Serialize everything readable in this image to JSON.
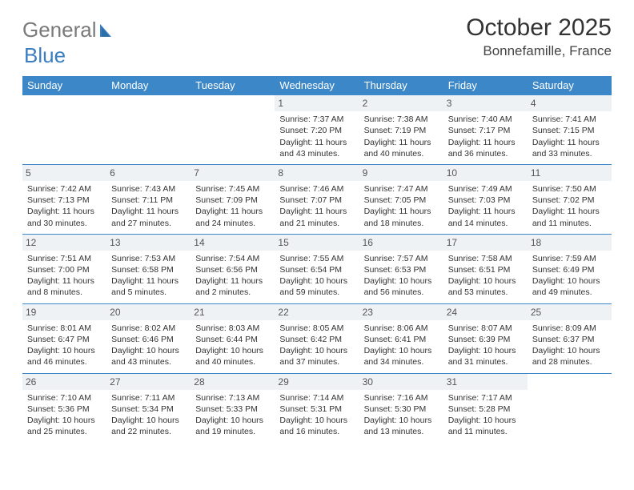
{
  "logo": {
    "text_gray": "General",
    "text_blue": "Blue"
  },
  "title": "October 2025",
  "location": "Bonnefamille, France",
  "colors": {
    "header_bg": "#3c87c7",
    "header_fg": "#ffffff",
    "daynum_bg": "#eef2f5",
    "border": "#3c87c7",
    "logo_gray": "#7a7a7a",
    "logo_blue": "#3a7ec1",
    "page_bg": "#ffffff"
  },
  "day_headers": [
    "Sunday",
    "Monday",
    "Tuesday",
    "Wednesday",
    "Thursday",
    "Friday",
    "Saturday"
  ],
  "weeks": [
    [
      null,
      null,
      null,
      {
        "n": "1",
        "sunrise": "Sunrise: 7:37 AM",
        "sunset": "Sunset: 7:20 PM",
        "d1": "Daylight: 11 hours",
        "d2": "and 43 minutes."
      },
      {
        "n": "2",
        "sunrise": "Sunrise: 7:38 AM",
        "sunset": "Sunset: 7:19 PM",
        "d1": "Daylight: 11 hours",
        "d2": "and 40 minutes."
      },
      {
        "n": "3",
        "sunrise": "Sunrise: 7:40 AM",
        "sunset": "Sunset: 7:17 PM",
        "d1": "Daylight: 11 hours",
        "d2": "and 36 minutes."
      },
      {
        "n": "4",
        "sunrise": "Sunrise: 7:41 AM",
        "sunset": "Sunset: 7:15 PM",
        "d1": "Daylight: 11 hours",
        "d2": "and 33 minutes."
      }
    ],
    [
      {
        "n": "5",
        "sunrise": "Sunrise: 7:42 AM",
        "sunset": "Sunset: 7:13 PM",
        "d1": "Daylight: 11 hours",
        "d2": "and 30 minutes."
      },
      {
        "n": "6",
        "sunrise": "Sunrise: 7:43 AM",
        "sunset": "Sunset: 7:11 PM",
        "d1": "Daylight: 11 hours",
        "d2": "and 27 minutes."
      },
      {
        "n": "7",
        "sunrise": "Sunrise: 7:45 AM",
        "sunset": "Sunset: 7:09 PM",
        "d1": "Daylight: 11 hours",
        "d2": "and 24 minutes."
      },
      {
        "n": "8",
        "sunrise": "Sunrise: 7:46 AM",
        "sunset": "Sunset: 7:07 PM",
        "d1": "Daylight: 11 hours",
        "d2": "and 21 minutes."
      },
      {
        "n": "9",
        "sunrise": "Sunrise: 7:47 AM",
        "sunset": "Sunset: 7:05 PM",
        "d1": "Daylight: 11 hours",
        "d2": "and 18 minutes."
      },
      {
        "n": "10",
        "sunrise": "Sunrise: 7:49 AM",
        "sunset": "Sunset: 7:03 PM",
        "d1": "Daylight: 11 hours",
        "d2": "and 14 minutes."
      },
      {
        "n": "11",
        "sunrise": "Sunrise: 7:50 AM",
        "sunset": "Sunset: 7:02 PM",
        "d1": "Daylight: 11 hours",
        "d2": "and 11 minutes."
      }
    ],
    [
      {
        "n": "12",
        "sunrise": "Sunrise: 7:51 AM",
        "sunset": "Sunset: 7:00 PM",
        "d1": "Daylight: 11 hours",
        "d2": "and 8 minutes."
      },
      {
        "n": "13",
        "sunrise": "Sunrise: 7:53 AM",
        "sunset": "Sunset: 6:58 PM",
        "d1": "Daylight: 11 hours",
        "d2": "and 5 minutes."
      },
      {
        "n": "14",
        "sunrise": "Sunrise: 7:54 AM",
        "sunset": "Sunset: 6:56 PM",
        "d1": "Daylight: 11 hours",
        "d2": "and 2 minutes."
      },
      {
        "n": "15",
        "sunrise": "Sunrise: 7:55 AM",
        "sunset": "Sunset: 6:54 PM",
        "d1": "Daylight: 10 hours",
        "d2": "and 59 minutes."
      },
      {
        "n": "16",
        "sunrise": "Sunrise: 7:57 AM",
        "sunset": "Sunset: 6:53 PM",
        "d1": "Daylight: 10 hours",
        "d2": "and 56 minutes."
      },
      {
        "n": "17",
        "sunrise": "Sunrise: 7:58 AM",
        "sunset": "Sunset: 6:51 PM",
        "d1": "Daylight: 10 hours",
        "d2": "and 53 minutes."
      },
      {
        "n": "18",
        "sunrise": "Sunrise: 7:59 AM",
        "sunset": "Sunset: 6:49 PM",
        "d1": "Daylight: 10 hours",
        "d2": "and 49 minutes."
      }
    ],
    [
      {
        "n": "19",
        "sunrise": "Sunrise: 8:01 AM",
        "sunset": "Sunset: 6:47 PM",
        "d1": "Daylight: 10 hours",
        "d2": "and 46 minutes."
      },
      {
        "n": "20",
        "sunrise": "Sunrise: 8:02 AM",
        "sunset": "Sunset: 6:46 PM",
        "d1": "Daylight: 10 hours",
        "d2": "and 43 minutes."
      },
      {
        "n": "21",
        "sunrise": "Sunrise: 8:03 AM",
        "sunset": "Sunset: 6:44 PM",
        "d1": "Daylight: 10 hours",
        "d2": "and 40 minutes."
      },
      {
        "n": "22",
        "sunrise": "Sunrise: 8:05 AM",
        "sunset": "Sunset: 6:42 PM",
        "d1": "Daylight: 10 hours",
        "d2": "and 37 minutes."
      },
      {
        "n": "23",
        "sunrise": "Sunrise: 8:06 AM",
        "sunset": "Sunset: 6:41 PM",
        "d1": "Daylight: 10 hours",
        "d2": "and 34 minutes."
      },
      {
        "n": "24",
        "sunrise": "Sunrise: 8:07 AM",
        "sunset": "Sunset: 6:39 PM",
        "d1": "Daylight: 10 hours",
        "d2": "and 31 minutes."
      },
      {
        "n": "25",
        "sunrise": "Sunrise: 8:09 AM",
        "sunset": "Sunset: 6:37 PM",
        "d1": "Daylight: 10 hours",
        "d2": "and 28 minutes."
      }
    ],
    [
      {
        "n": "26",
        "sunrise": "Sunrise: 7:10 AM",
        "sunset": "Sunset: 5:36 PM",
        "d1": "Daylight: 10 hours",
        "d2": "and 25 minutes."
      },
      {
        "n": "27",
        "sunrise": "Sunrise: 7:11 AM",
        "sunset": "Sunset: 5:34 PM",
        "d1": "Daylight: 10 hours",
        "d2": "and 22 minutes."
      },
      {
        "n": "28",
        "sunrise": "Sunrise: 7:13 AM",
        "sunset": "Sunset: 5:33 PM",
        "d1": "Daylight: 10 hours",
        "d2": "and 19 minutes."
      },
      {
        "n": "29",
        "sunrise": "Sunrise: 7:14 AM",
        "sunset": "Sunset: 5:31 PM",
        "d1": "Daylight: 10 hours",
        "d2": "and 16 minutes."
      },
      {
        "n": "30",
        "sunrise": "Sunrise: 7:16 AM",
        "sunset": "Sunset: 5:30 PM",
        "d1": "Daylight: 10 hours",
        "d2": "and 13 minutes."
      },
      {
        "n": "31",
        "sunrise": "Sunrise: 7:17 AM",
        "sunset": "Sunset: 5:28 PM",
        "d1": "Daylight: 10 hours",
        "d2": "and 11 minutes."
      },
      null
    ]
  ]
}
